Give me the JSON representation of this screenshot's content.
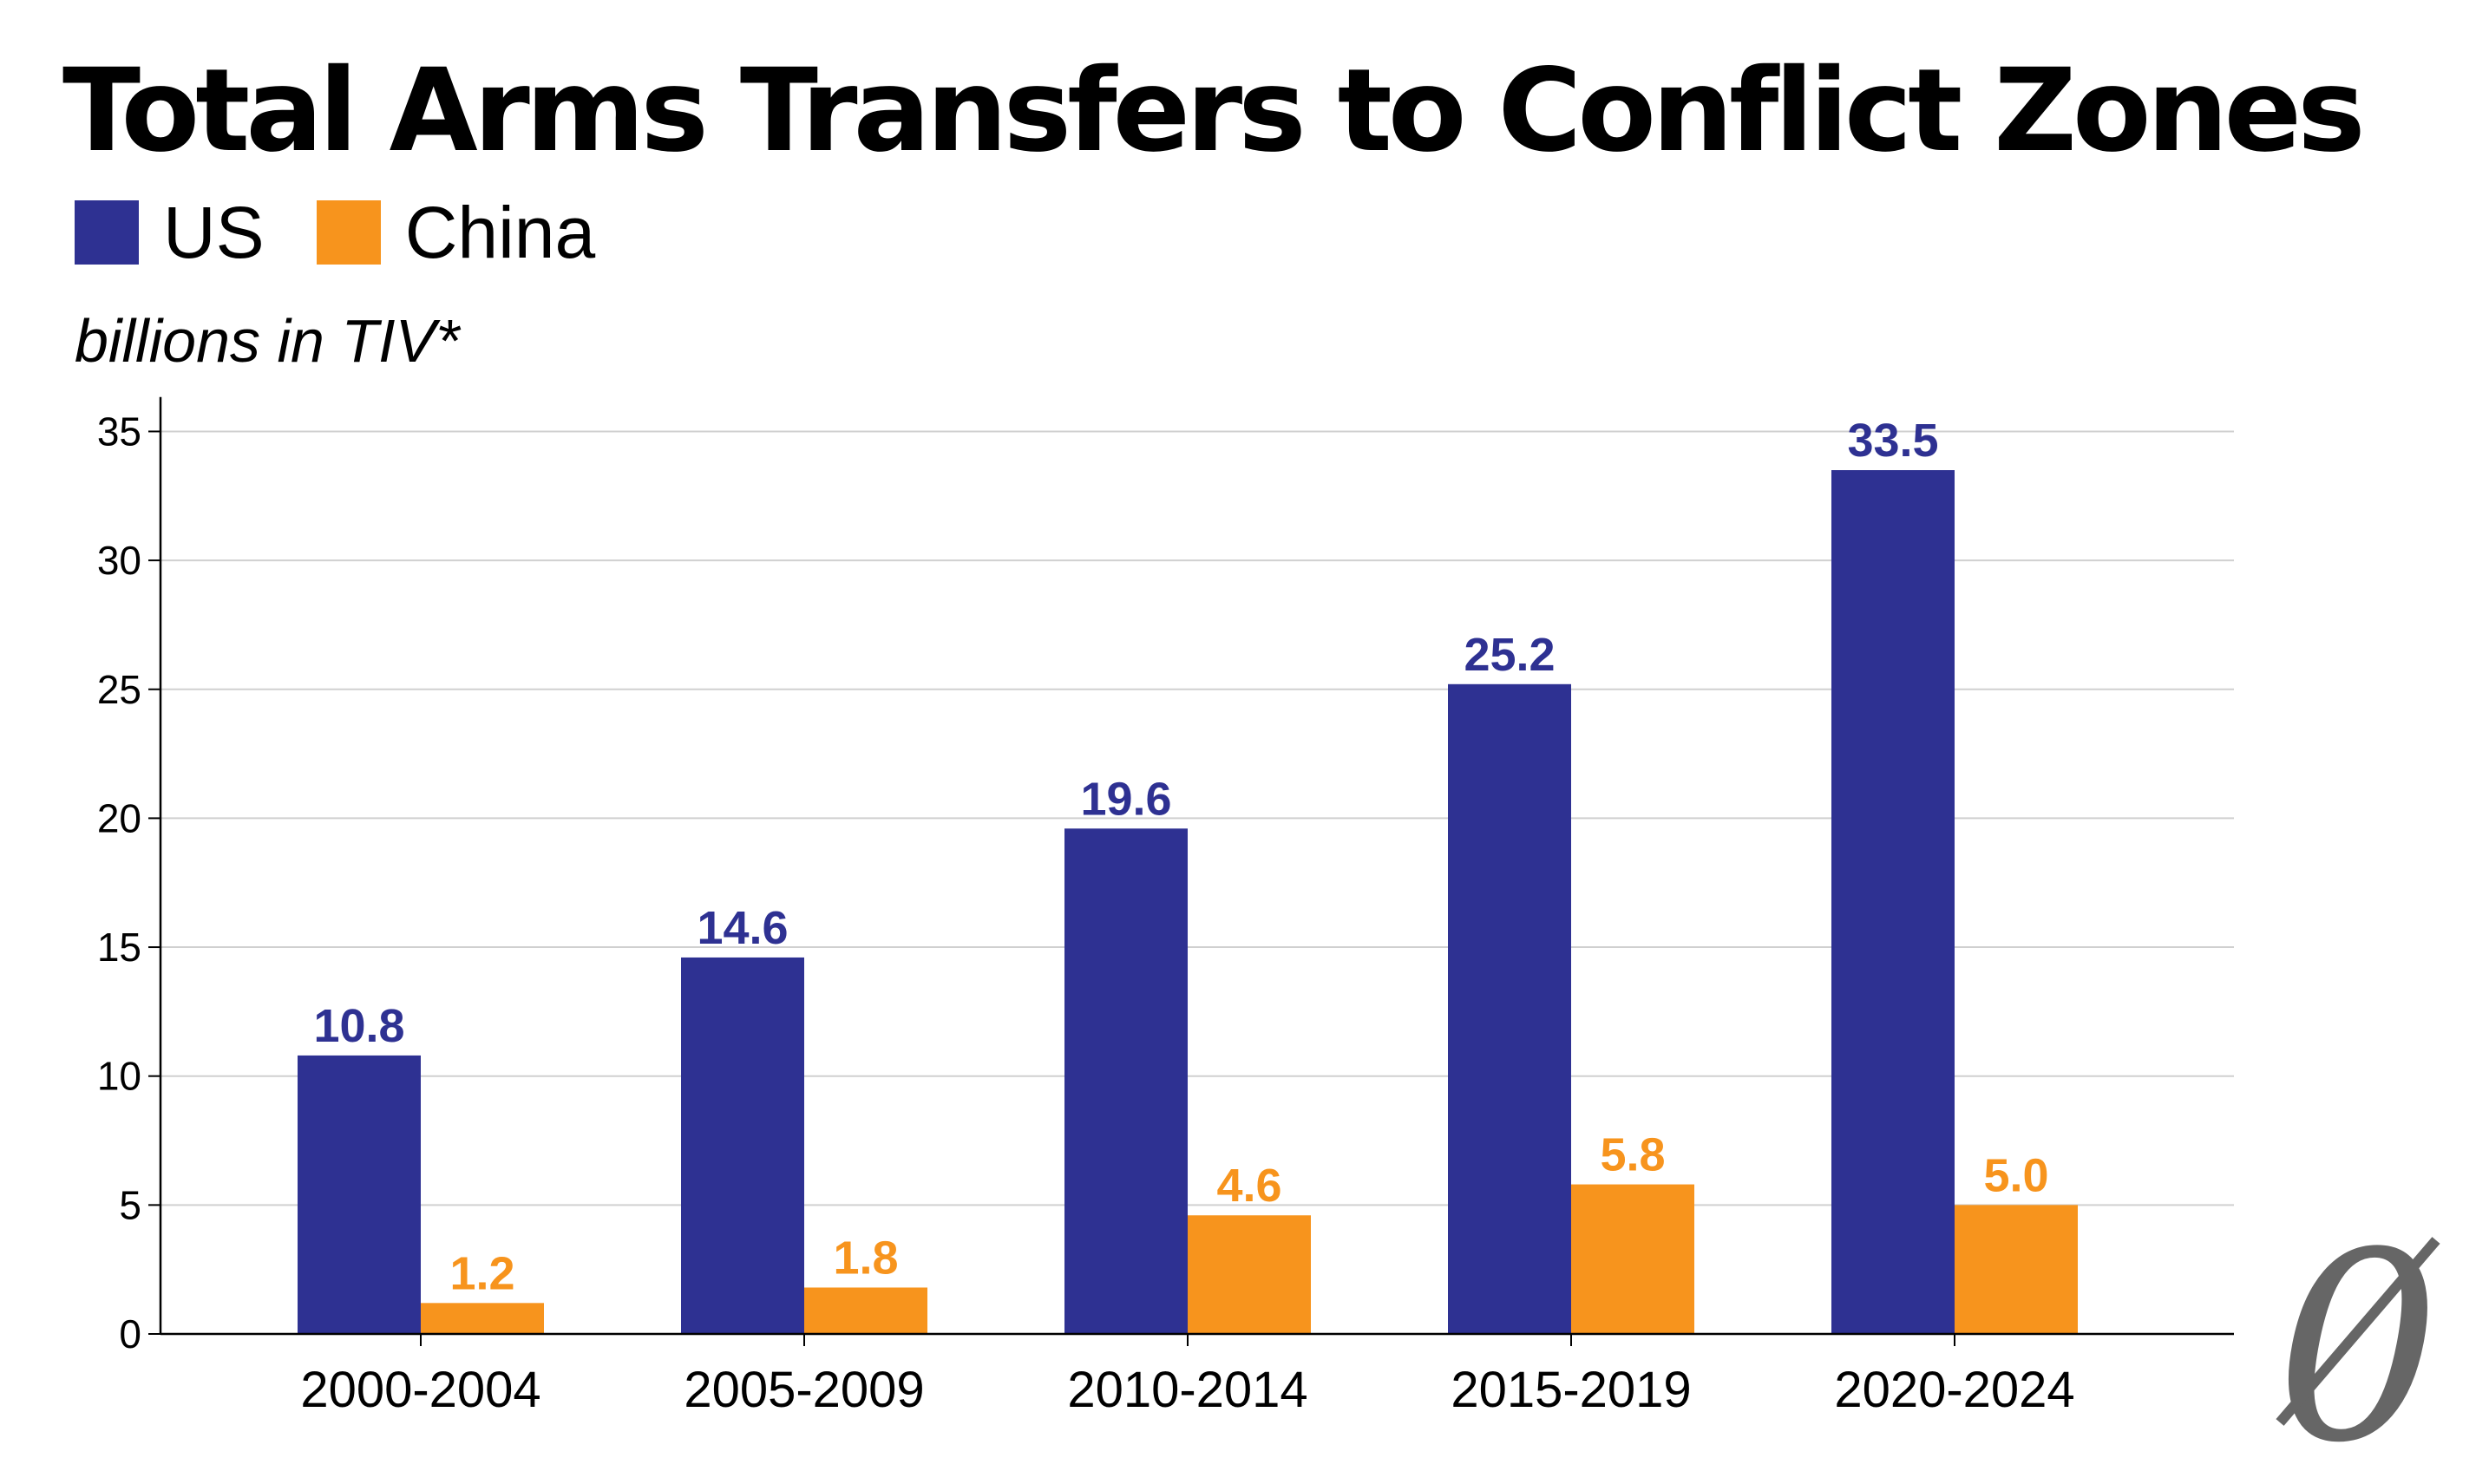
{
  "chart_data": {
    "type": "bar",
    "title": "Total Arms Transfers to Conflict Zones",
    "ylabel": "billions in TIV*",
    "xlabel": "",
    "categories": [
      "2000-2004",
      "2005-2009",
      "2010-2014",
      "2015-2019",
      "2020-2024"
    ],
    "series": [
      {
        "name": "US",
        "color": "#2e3192",
        "values": [
          10.8,
          14.6,
          19.6,
          25.2,
          33.5
        ],
        "labels": [
          "10.8",
          "14.6",
          "19.6",
          "25.2",
          "33.5"
        ]
      },
      {
        "name": "China",
        "color": "#f7941d",
        "values": [
          1.2,
          1.8,
          4.6,
          5.8,
          5.0
        ],
        "labels": [
          "1.2",
          "1.8",
          "4.6",
          "5.8",
          "5.0"
        ]
      }
    ],
    "ylim": [
      0,
      36
    ],
    "yticks": [
      0,
      5,
      10,
      15,
      20,
      25,
      30,
      35
    ],
    "grid": true,
    "legend": "top-left"
  },
  "colors": {
    "gridline": "#d0d0d0",
    "axis": "#000000",
    "logo": "#666666"
  },
  "logo": {
    "icon": "slashed-zero-logo-icon",
    "glyph": "0"
  }
}
